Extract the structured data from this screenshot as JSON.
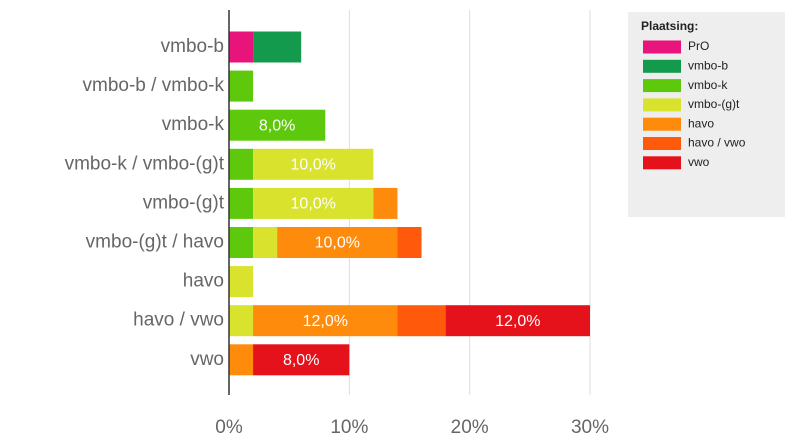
{
  "chart_data": {
    "type": "stacked-bar-horizontal",
    "categories": [
      "vmbo-b",
      "vmbo-b / vmbo-k",
      "vmbo-k",
      "vmbo-k / vmbo-(g)t",
      "vmbo-(g)t",
      "vmbo-(g)t / havo",
      "havo",
      "havo / vwo",
      "vwo"
    ],
    "series": [
      {
        "name": "PrO",
        "color": "#e8137b",
        "values": [
          2,
          null,
          null,
          null,
          null,
          null,
          null,
          null,
          null
        ]
      },
      {
        "name": "vmbo-b",
        "color": "#139a4c",
        "values": [
          4,
          null,
          null,
          null,
          null,
          null,
          null,
          null,
          null
        ]
      },
      {
        "name": "vmbo-k",
        "color": "#5ec90c",
        "values": [
          null,
          2,
          8,
          2,
          2,
          2,
          null,
          null,
          null
        ],
        "value_labels": [
          null,
          null,
          "8,0%",
          null,
          null,
          null,
          null,
          null,
          null
        ]
      },
      {
        "name": "vmbo-(g)t",
        "color": "#d9e22c",
        "values": [
          null,
          null,
          null,
          10,
          10,
          2,
          2,
          2,
          null
        ],
        "value_labels": [
          null,
          null,
          null,
          "10,0%",
          "10,0%",
          null,
          null,
          null,
          null
        ]
      },
      {
        "name": "havo",
        "color": "#ff8b0c",
        "values": [
          null,
          null,
          null,
          null,
          2,
          10,
          null,
          12,
          2
        ],
        "value_labels": [
          null,
          null,
          null,
          null,
          null,
          "10,0%",
          null,
          "12,0%",
          null
        ]
      },
      {
        "name": "havo / vwo",
        "color": "#ff5a0c",
        "values": [
          null,
          null,
          null,
          null,
          null,
          2,
          null,
          4,
          null
        ]
      },
      {
        "name": "vwo",
        "color": "#e5121b",
        "values": [
          null,
          null,
          null,
          null,
          null,
          null,
          null,
          12,
          8
        ],
        "value_labels": [
          null,
          null,
          null,
          null,
          null,
          null,
          null,
          "12,0%",
          "8,0%"
        ]
      }
    ],
    "xlim": [
      0,
      30
    ],
    "xticks": [
      {
        "value": 0,
        "label": "0%"
      },
      {
        "value": 10,
        "label": "10%"
      },
      {
        "value": 20,
        "label": "20%"
      },
      {
        "value": 30,
        "label": "30%"
      }
    ],
    "grid": true,
    "legend": {
      "title": "Plaatsing:",
      "position": "right"
    }
  }
}
